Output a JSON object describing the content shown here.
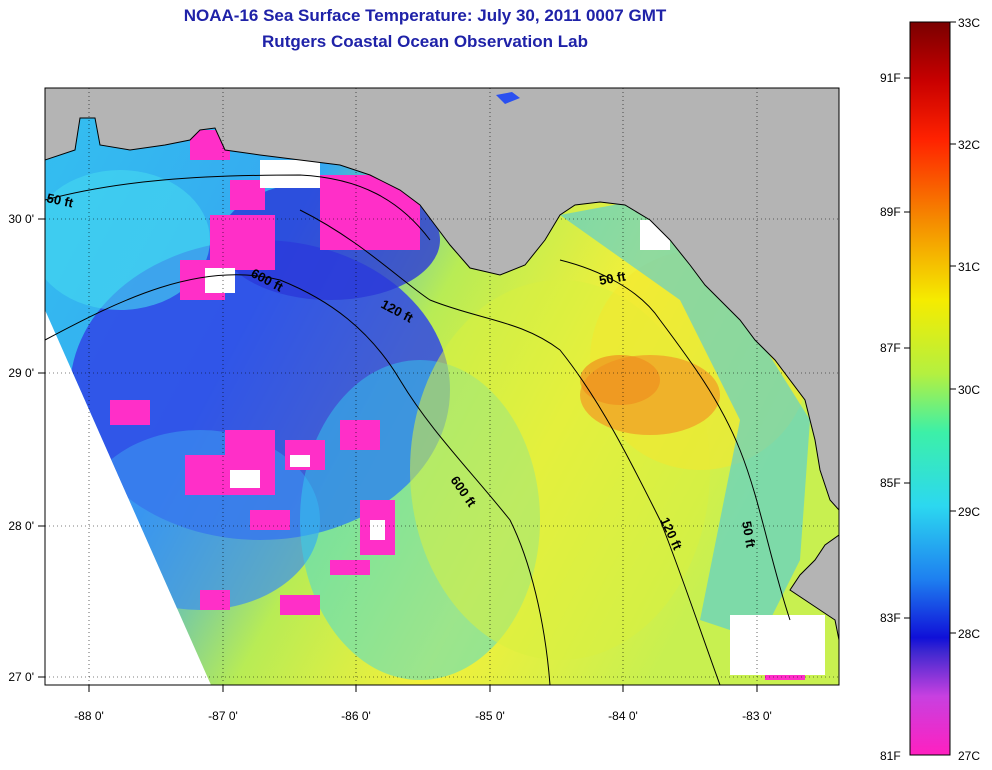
{
  "title": {
    "line1": "NOAA-16 Sea Surface Temperature:  July 30, 2011 0007 GMT",
    "line2": "Rutgers Coastal Ocean Observation Lab"
  },
  "map": {
    "lon_ticks": [
      "-88 0'",
      "-87 0'",
      "-86 0'",
      "-85 0'",
      "-84 0'",
      "-83 0'"
    ],
    "lat_ticks": [
      "30 0'",
      "29 0'",
      "28 0'",
      "27 0'"
    ],
    "contour_labels": [
      "50 ft",
      "600 ft",
      "120 ft",
      "50 ft",
      "600 ft",
      "120 ft",
      "50 ft"
    ],
    "colors": {
      "land": "#b4b4b4",
      "cloud": "#ffffff",
      "cold": "#ff2fc8",
      "blue": "#2e3fe0",
      "cyan": "#27c8f0",
      "green": "#8fe56a",
      "yellow": "#eef23a",
      "orange": "#f0a020"
    }
  },
  "colorbar": {
    "fahrenheit": [
      "91F",
      "89F",
      "87F",
      "85F",
      "83F",
      "81F"
    ],
    "celsius": [
      "33C",
      "32C",
      "31C",
      "30C",
      "29C",
      "28C",
      "27C"
    ]
  }
}
